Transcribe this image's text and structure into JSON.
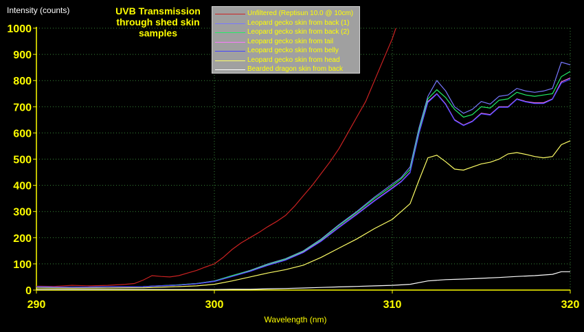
{
  "chart_data": {
    "type": "line",
    "title": "UVB Transmission through shed skin samples",
    "xlabel": "Wavelength (nm)",
    "ylabel": "Intensity (counts)",
    "xlim": [
      290,
      320
    ],
    "ylim": [
      0,
      1000
    ],
    "xticks": [
      290,
      300,
      310,
      320
    ],
    "yticks": [
      0,
      100,
      200,
      300,
      400,
      500,
      600,
      700,
      800,
      900,
      1000
    ],
    "grid": true,
    "legend_position": "top",
    "series": [
      {
        "name": "Unfiltered (Reptisun 10.0 @ 10cm)",
        "color": "#cc2222",
        "x": [
          290,
          291,
          292,
          293,
          294,
          295,
          295.5,
          296,
          296.5,
          297,
          297.5,
          298,
          298.5,
          299,
          299.5,
          300,
          300.5,
          301,
          301.5,
          302,
          302.5,
          303,
          303.5,
          304,
          304.5,
          305,
          305.5,
          306,
          306.5,
          307,
          307.5,
          308,
          308.5,
          309,
          309.5,
          310,
          310.2
        ],
        "y": [
          15,
          14,
          18,
          16,
          18,
          22,
          25,
          38,
          55,
          52,
          50,
          55,
          65,
          75,
          88,
          100,
          125,
          155,
          180,
          200,
          220,
          242,
          262,
          285,
          320,
          360,
          400,
          445,
          490,
          540,
          600,
          660,
          720,
          800,
          880,
          960,
          1000
        ]
      },
      {
        "name": "Leopard gecko skin from back (1)",
        "color": "#7777ff",
        "x": [
          290,
          292,
          294,
          296,
          298,
          299,
          300,
          301,
          302,
          303,
          304,
          305,
          306,
          307,
          308,
          309,
          310,
          310.5,
          311,
          311.5,
          312,
          312.5,
          313,
          313.5,
          314,
          314.5,
          315,
          315.5,
          316,
          316.5,
          317,
          317.5,
          318,
          318.5,
          319,
          319.5,
          320
        ],
        "y": [
          12,
          11,
          12,
          13,
          20,
          25,
          35,
          55,
          75,
          100,
          120,
          150,
          195,
          250,
          300,
          355,
          405,
          430,
          470,
          620,
          740,
          800,
          760,
          700,
          675,
          690,
          720,
          710,
          740,
          745,
          770,
          760,
          755,
          760,
          770,
          870,
          860
        ]
      },
      {
        "name": "Leopard gecko skin from back (2)",
        "color": "#22ee66",
        "x": [
          290,
          292,
          294,
          296,
          298,
          299,
          300,
          301,
          302,
          303,
          304,
          305,
          306,
          307,
          308,
          309,
          310,
          310.5,
          311,
          311.5,
          312,
          312.5,
          313,
          313.5,
          314,
          314.5,
          315,
          315.5,
          316,
          316.5,
          317,
          317.5,
          318,
          318.5,
          319,
          319.5,
          320
        ],
        "y": [
          12,
          11,
          12,
          13,
          20,
          25,
          34,
          55,
          74,
          98,
          118,
          148,
          192,
          246,
          296,
          350,
          398,
          425,
          460,
          610,
          730,
          765,
          735,
          690,
          660,
          670,
          700,
          695,
          725,
          730,
          755,
          745,
          740,
          745,
          750,
          815,
          835
        ]
      },
      {
        "name": "Leopard gecko skin from tail",
        "color": "#ff77ff",
        "x": [
          290,
          292,
          294,
          296,
          298,
          299,
          300,
          301,
          302,
          303,
          304,
          305,
          306,
          307,
          308,
          309,
          310,
          310.5,
          311,
          311.5,
          312,
          312.5,
          313,
          313.5,
          314,
          314.5,
          315,
          315.5,
          316,
          316.5,
          317,
          317.5,
          318,
          318.5,
          319,
          319.5,
          320
        ],
        "y": [
          12,
          11,
          12,
          13,
          19,
          24,
          33,
          52,
          72,
          95,
          115,
          145,
          188,
          240,
          290,
          342,
          390,
          415,
          450,
          600,
          720,
          750,
          710,
          650,
          630,
          645,
          675,
          670,
          700,
          700,
          730,
          720,
          715,
          715,
          730,
          795,
          810
        ]
      },
      {
        "name": "Leopard gecko skin from belly",
        "color": "#4444ff",
        "x": [
          290,
          292,
          294,
          296,
          298,
          299,
          300,
          301,
          302,
          303,
          304,
          305,
          306,
          307,
          308,
          309,
          310,
          310.5,
          311,
          311.5,
          312,
          312.5,
          313,
          313.5,
          314,
          314.5,
          315,
          315.5,
          316,
          316.5,
          317,
          317.5,
          318,
          318.5,
          319,
          319.5,
          320
        ],
        "y": [
          12,
          11,
          12,
          13,
          19,
          24,
          33,
          52,
          71,
          94,
          114,
          143,
          186,
          238,
          288,
          340,
          388,
          413,
          448,
          598,
          716,
          748,
          708,
          648,
          628,
          643,
          673,
          668,
          698,
          698,
          728,
          718,
          712,
          712,
          728,
          790,
          805
        ]
      },
      {
        "name": "Leopard gecko skin from head",
        "color": "#ffff66",
        "x": [
          290,
          292,
          294,
          296,
          298,
          299,
          300,
          301,
          302,
          303,
          304,
          305,
          306,
          307,
          308,
          309,
          310,
          310.5,
          311,
          311.5,
          312,
          312.5,
          313,
          313.5,
          314,
          314.5,
          315,
          315.5,
          316,
          316.5,
          317,
          317.5,
          318,
          318.5,
          319,
          319.5,
          320
        ],
        "y": [
          8,
          7,
          8,
          9,
          13,
          16,
          22,
          35,
          50,
          65,
          78,
          95,
          125,
          160,
          195,
          235,
          270,
          300,
          330,
          420,
          505,
          515,
          490,
          462,
          458,
          470,
          482,
          488,
          500,
          520,
          525,
          518,
          510,
          505,
          510,
          555,
          570
        ]
      },
      {
        "name": "Bearded dragon skin from back",
        "color": "#ffffff",
        "x": [
          290,
          292,
          294,
          296,
          298,
          300,
          301,
          302,
          303,
          304,
          305,
          306,
          307,
          308,
          309,
          310,
          311,
          312,
          313,
          314,
          315,
          316,
          317,
          318,
          319,
          319.5,
          320
        ],
        "y": [
          2,
          2,
          2,
          2,
          2,
          2,
          3,
          3,
          5,
          6,
          8,
          10,
          12,
          14,
          16,
          18,
          22,
          35,
          40,
          42,
          45,
          48,
          52,
          55,
          60,
          70,
          70
        ]
      }
    ]
  }
}
